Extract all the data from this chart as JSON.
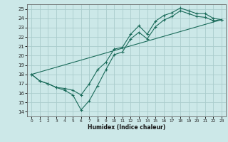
{
  "bg_color": "#cce8e8",
  "grid_color": "#aacccc",
  "line_color": "#1a6b5a",
  "xlabel": "Humidex (Indice chaleur)",
  "xlim": [
    -0.5,
    23.5
  ],
  "ylim": [
    13.5,
    25.5
  ],
  "xticks": [
    0,
    1,
    2,
    3,
    4,
    5,
    6,
    7,
    8,
    9,
    10,
    11,
    12,
    13,
    14,
    15,
    16,
    17,
    18,
    19,
    20,
    21,
    22,
    23
  ],
  "yticks": [
    14,
    15,
    16,
    17,
    18,
    19,
    20,
    21,
    22,
    23,
    24,
    25
  ],
  "curve1_x": [
    0,
    1,
    2,
    3,
    4,
    5,
    6,
    7,
    8,
    9,
    10,
    11,
    12,
    13,
    14,
    15,
    16,
    17,
    18,
    19,
    20,
    21,
    22,
    23
  ],
  "curve1_y": [
    18.0,
    17.3,
    17.0,
    16.6,
    16.5,
    16.3,
    15.8,
    17.0,
    18.5,
    19.3,
    20.7,
    20.9,
    22.3,
    23.2,
    22.3,
    23.7,
    24.3,
    24.6,
    25.1,
    24.8,
    24.5,
    24.5,
    24.0,
    23.85
  ],
  "curve2_x": [
    0,
    1,
    2,
    3,
    4,
    5,
    6,
    7,
    8,
    9,
    10,
    11,
    12,
    13,
    14,
    15,
    16,
    17,
    18,
    19,
    20,
    21,
    22,
    23
  ],
  "curve2_y": [
    18.0,
    17.3,
    17.0,
    16.6,
    16.3,
    15.8,
    14.2,
    15.2,
    16.8,
    18.5,
    20.1,
    20.4,
    21.8,
    22.5,
    21.8,
    23.1,
    23.8,
    24.2,
    24.8,
    24.5,
    24.2,
    24.1,
    23.75,
    23.85
  ],
  "line_x": [
    0,
    23
  ],
  "line_y": [
    18.0,
    23.85
  ]
}
